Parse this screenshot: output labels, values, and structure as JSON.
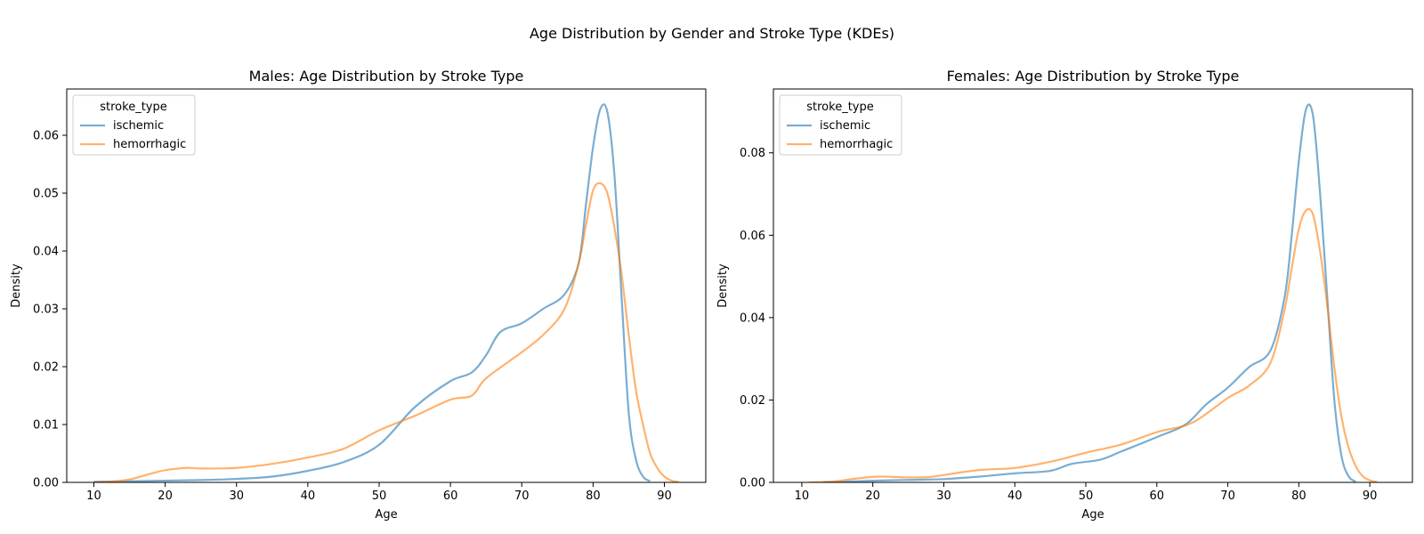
{
  "suptitle": "Age Distribution by Gender and Stroke Type (KDEs)",
  "colors": {
    "ischemic": "#1f77b4",
    "hemorrhagic": "#ff7f0e"
  },
  "chart_data": [
    {
      "type": "line",
      "title": "Males: Age Distribution by Stroke Type",
      "xlabel": "Age",
      "ylabel": "Density",
      "xlim": [
        6.2,
        95.8
      ],
      "ylim": [
        0,
        0.068
      ],
      "xticks": [
        10,
        20,
        30,
        40,
        50,
        60,
        70,
        80,
        90
      ],
      "yticks": [
        0.0,
        0.01,
        0.02,
        0.03,
        0.04,
        0.05,
        0.06
      ],
      "ytick_labels": [
        "0.00",
        "0.01",
        "0.02",
        "0.03",
        "0.04",
        "0.05",
        "0.06"
      ],
      "legend": {
        "title": "stroke_type",
        "placement": "top-left"
      },
      "series": [
        {
          "name": "ischemic",
          "x": [
            10,
            15,
            20,
            25,
            30,
            35,
            40,
            45,
            50,
            55,
            60,
            63,
            65,
            67,
            70,
            73,
            76,
            78,
            79,
            80,
            81,
            82,
            83,
            84,
            85,
            86,
            87,
            88
          ],
          "y": [
            0.0001,
            0.0002,
            0.0003,
            0.0004,
            0.0006,
            0.001,
            0.002,
            0.0035,
            0.0065,
            0.013,
            0.0175,
            0.019,
            0.022,
            0.026,
            0.0275,
            0.03,
            0.0325,
            0.038,
            0.048,
            0.058,
            0.0645,
            0.064,
            0.053,
            0.032,
            0.012,
            0.004,
            0.001,
            0.0002
          ]
        },
        {
          "name": "hemorrhagic",
          "x": [
            10,
            13,
            15,
            18,
            20,
            23,
            25,
            30,
            35,
            40,
            45,
            50,
            55,
            60,
            63,
            65,
            70,
            73,
            76,
            78,
            79,
            80,
            81,
            82,
            83,
            84,
            85,
            86,
            87,
            88,
            89,
            90,
            91,
            92
          ],
          "y": [
            0.0,
            0.0002,
            0.0005,
            0.0015,
            0.0021,
            0.0025,
            0.0024,
            0.0025,
            0.0032,
            0.0043,
            0.0058,
            0.009,
            0.0115,
            0.0143,
            0.015,
            0.018,
            0.0225,
            0.0255,
            0.03,
            0.038,
            0.0445,
            0.0505,
            0.0517,
            0.05,
            0.044,
            0.036,
            0.0255,
            0.016,
            0.01,
            0.005,
            0.0025,
            0.001,
            0.0003,
            0.0001
          ]
        }
      ]
    },
    {
      "type": "line",
      "title": "Females: Age Distribution by Stroke Type",
      "xlabel": "Age",
      "ylabel": "Density",
      "xlim": [
        6.0,
        96.0
      ],
      "ylim": [
        0,
        0.0955
      ],
      "xticks": [
        10,
        20,
        30,
        40,
        50,
        60,
        70,
        80,
        90
      ],
      "yticks": [
        0.0,
        0.02,
        0.04,
        0.06,
        0.08
      ],
      "ytick_labels": [
        "0.00",
        "0.02",
        "0.04",
        "0.06",
        "0.08"
      ],
      "legend": {
        "title": "stroke_type",
        "placement": "top-left"
      },
      "series": [
        {
          "name": "ischemic",
          "x": [
            13,
            15,
            20,
            25,
            30,
            35,
            40,
            45,
            48,
            52,
            55,
            60,
            64,
            67,
            70,
            73,
            76,
            78,
            79,
            80,
            81,
            82,
            83,
            84,
            85,
            86,
            87,
            88
          ],
          "y": [
            0.0,
            0.0001,
            0.0004,
            0.0006,
            0.0008,
            0.0014,
            0.0022,
            0.0028,
            0.0045,
            0.0055,
            0.0075,
            0.011,
            0.014,
            0.019,
            0.023,
            0.028,
            0.032,
            0.045,
            0.06,
            0.078,
            0.0905,
            0.089,
            0.07,
            0.045,
            0.02,
            0.0065,
            0.0015,
            0.0002
          ]
        },
        {
          "name": "hemorrhagic",
          "x": [
            11,
            13,
            15,
            18,
            21,
            25,
            28,
            30,
            35,
            40,
            45,
            50,
            55,
            60,
            65,
            70,
            73,
            76,
            78,
            79,
            80,
            81,
            82,
            83,
            84,
            85,
            86,
            87,
            88,
            89,
            90,
            91
          ],
          "y": [
            0.0,
            0.0001,
            0.0003,
            0.001,
            0.0014,
            0.0012,
            0.0013,
            0.0018,
            0.003,
            0.0035,
            0.005,
            0.0072,
            0.0092,
            0.0122,
            0.0145,
            0.0205,
            0.0235,
            0.029,
            0.042,
            0.052,
            0.0615,
            0.066,
            0.065,
            0.056,
            0.043,
            0.028,
            0.016,
            0.0085,
            0.004,
            0.0015,
            0.0005,
            0.0001
          ]
        }
      ]
    }
  ]
}
